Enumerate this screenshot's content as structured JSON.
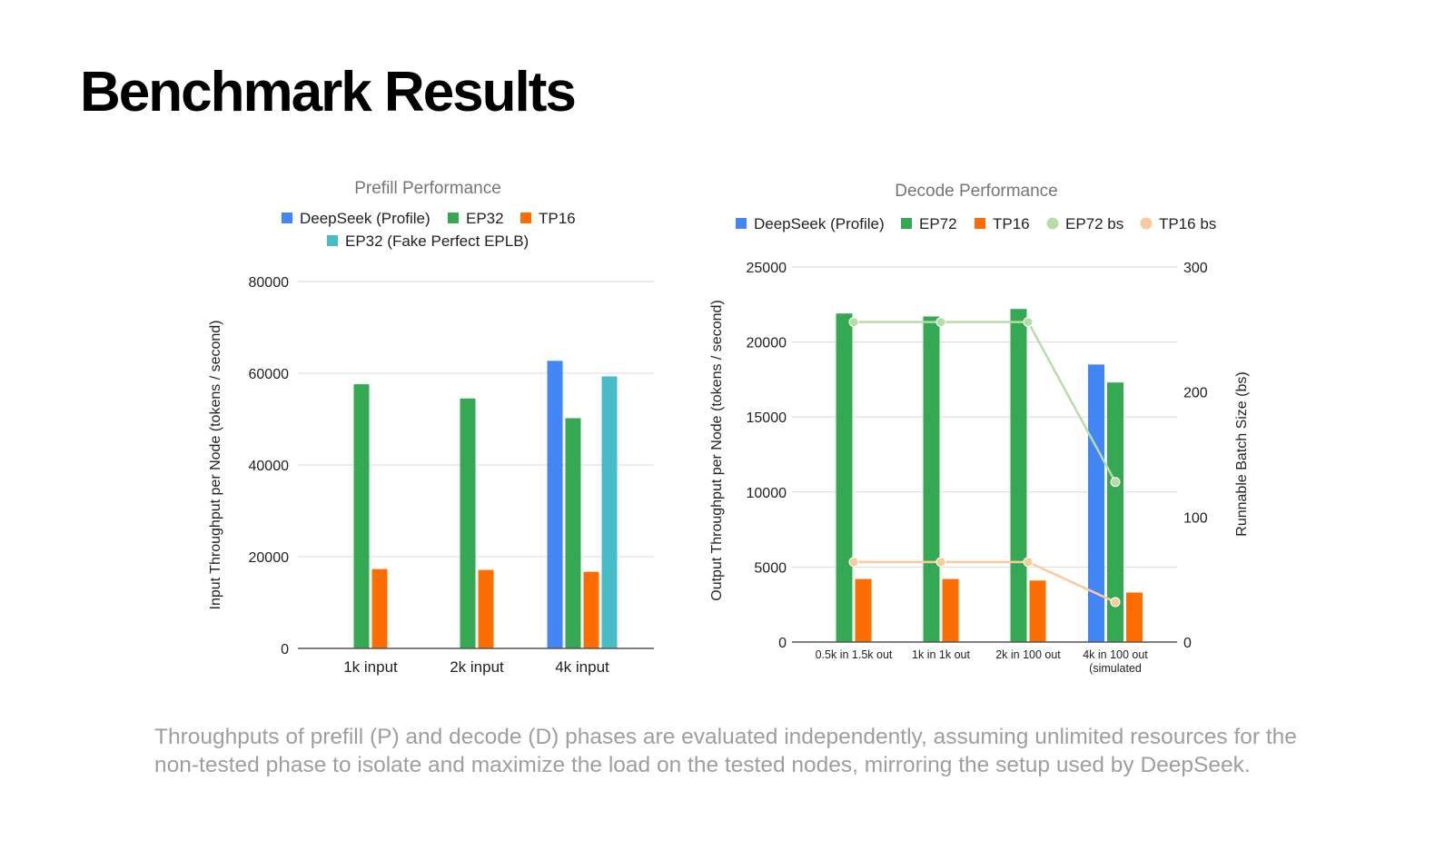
{
  "slide": {
    "title": "Benchmark Results",
    "caption": "Throughputs of prefill (P) and decode (D) phases are evaluated independently, assuming unlimited resources for the non-tested phase to isolate and maximize the load on the tested nodes, mirroring the setup used by DeepSeek."
  },
  "chart_data": [
    {
      "type": "bar",
      "title": "Prefill Performance",
      "xlabel": "",
      "ylabel": "Input Throughput per Node (tokens / second)",
      "ylim": [
        0,
        80000
      ],
      "yticks": [
        0,
        20000,
        40000,
        60000,
        80000
      ],
      "grid": true,
      "legend_position": "top",
      "categories": [
        "1k input",
        "2k input",
        "4k input"
      ],
      "series": [
        {
          "name": "DeepSeek (Profile)",
          "color": "#4285f4",
          "values": [
            null,
            null,
            62700
          ]
        },
        {
          "name": "EP32",
          "color": "#34a853",
          "values": [
            57600,
            54500,
            50200
          ]
        },
        {
          "name": "TP16",
          "color": "#ff6d01",
          "values": [
            17300,
            17100,
            16700
          ]
        },
        {
          "name": "EP32 (Fake Perfect EPLB)",
          "color": "#46bdc6",
          "values": [
            null,
            null,
            59300
          ]
        }
      ]
    },
    {
      "type": "bar",
      "title": "Decode Performance",
      "xlabel": "",
      "ylabel": "Output Throughput per Node (tokens / second)",
      "y2label": "Runnable Batch Size (bs)",
      "ylim": [
        0,
        25000
      ],
      "yticks": [
        0,
        5000,
        10000,
        15000,
        20000,
        25000
      ],
      "y2lim": [
        0,
        300
      ],
      "y2ticks": [
        0,
        100,
        200,
        300
      ],
      "grid": true,
      "legend_position": "top",
      "categories": [
        "0.5k in 1.5k out",
        "1k in 1k out",
        "2k in 100 out",
        "4k in 100 out (simulated"
      ],
      "series": [
        {
          "name": "DeepSeek (Profile)",
          "color": "#4285f4",
          "type": "bar",
          "axis": "left",
          "values": [
            null,
            null,
            null,
            18500
          ]
        },
        {
          "name": "EP72",
          "color": "#34a853",
          "type": "bar",
          "axis": "left",
          "values": [
            21900,
            21700,
            22200,
            17300
          ]
        },
        {
          "name": "TP16",
          "color": "#ff6d01",
          "type": "bar",
          "axis": "left",
          "values": [
            4200,
            4200,
            4100,
            3300
          ]
        },
        {
          "name": "EP72 bs",
          "color": "#b7dba9",
          "type": "line",
          "axis": "right",
          "values": [
            256,
            256,
            256,
            128
          ]
        },
        {
          "name": "TP16 bs",
          "color": "#f7cb9f",
          "type": "line",
          "axis": "right",
          "values": [
            64,
            64,
            64,
            32
          ]
        }
      ]
    }
  ]
}
